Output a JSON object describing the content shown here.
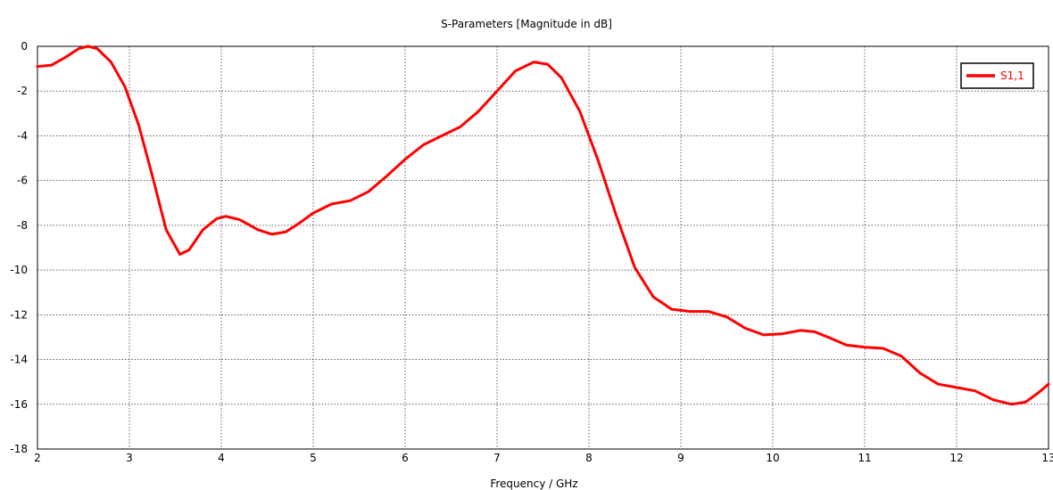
{
  "chart_data": {
    "type": "line",
    "title": "S-Parameters [Magnitude in dB]",
    "xlabel": "Frequency / GHz",
    "ylabel": "",
    "xlim": [
      2,
      13
    ],
    "ylim": [
      -18,
      0
    ],
    "xticks": [
      2,
      3,
      4,
      5,
      6,
      7,
      8,
      9,
      10,
      11,
      12,
      13
    ],
    "yticks": [
      0,
      -2,
      -4,
      -6,
      -8,
      -10,
      -12,
      -14,
      -16,
      -18
    ],
    "grid": true,
    "legend_position": "top-right",
    "series": [
      {
        "name": "S1,1",
        "color": "#ff0000",
        "points": [
          [
            2.0,
            -0.9
          ],
          [
            2.15,
            -0.85
          ],
          [
            2.3,
            -0.5
          ],
          [
            2.45,
            -0.1
          ],
          [
            2.55,
            0.0
          ],
          [
            2.65,
            -0.1
          ],
          [
            2.8,
            -0.7
          ],
          [
            2.95,
            -1.8
          ],
          [
            3.1,
            -3.5
          ],
          [
            3.25,
            -5.8
          ],
          [
            3.4,
            -8.2
          ],
          [
            3.55,
            -9.3
          ],
          [
            3.65,
            -9.1
          ],
          [
            3.8,
            -8.2
          ],
          [
            3.95,
            -7.7
          ],
          [
            4.05,
            -7.6
          ],
          [
            4.2,
            -7.75
          ],
          [
            4.4,
            -8.2
          ],
          [
            4.55,
            -8.4
          ],
          [
            4.7,
            -8.3
          ],
          [
            4.85,
            -7.9
          ],
          [
            5.0,
            -7.45
          ],
          [
            5.2,
            -7.05
          ],
          [
            5.4,
            -6.9
          ],
          [
            5.6,
            -6.5
          ],
          [
            5.8,
            -5.8
          ],
          [
            6.0,
            -5.05
          ],
          [
            6.2,
            -4.4
          ],
          [
            6.4,
            -4.0
          ],
          [
            6.6,
            -3.6
          ],
          [
            6.8,
            -2.9
          ],
          [
            7.0,
            -2.0
          ],
          [
            7.2,
            -1.1
          ],
          [
            7.4,
            -0.7
          ],
          [
            7.55,
            -0.8
          ],
          [
            7.7,
            -1.4
          ],
          [
            7.9,
            -2.9
          ],
          [
            8.1,
            -5.1
          ],
          [
            8.3,
            -7.6
          ],
          [
            8.5,
            -9.9
          ],
          [
            8.7,
            -11.2
          ],
          [
            8.9,
            -11.75
          ],
          [
            9.1,
            -11.85
          ],
          [
            9.3,
            -11.85
          ],
          [
            9.5,
            -12.1
          ],
          [
            9.7,
            -12.6
          ],
          [
            9.9,
            -12.9
          ],
          [
            10.1,
            -12.85
          ],
          [
            10.3,
            -12.7
          ],
          [
            10.45,
            -12.75
          ],
          [
            10.6,
            -13.0
          ],
          [
            10.8,
            -13.35
          ],
          [
            11.0,
            -13.45
          ],
          [
            11.2,
            -13.5
          ],
          [
            11.4,
            -13.85
          ],
          [
            11.6,
            -14.6
          ],
          [
            11.8,
            -15.1
          ],
          [
            12.0,
            -15.25
          ],
          [
            12.2,
            -15.4
          ],
          [
            12.4,
            -15.8
          ],
          [
            12.6,
            -16.0
          ],
          [
            12.75,
            -15.9
          ],
          [
            12.9,
            -15.45
          ],
          [
            13.0,
            -15.1
          ]
        ]
      }
    ]
  }
}
